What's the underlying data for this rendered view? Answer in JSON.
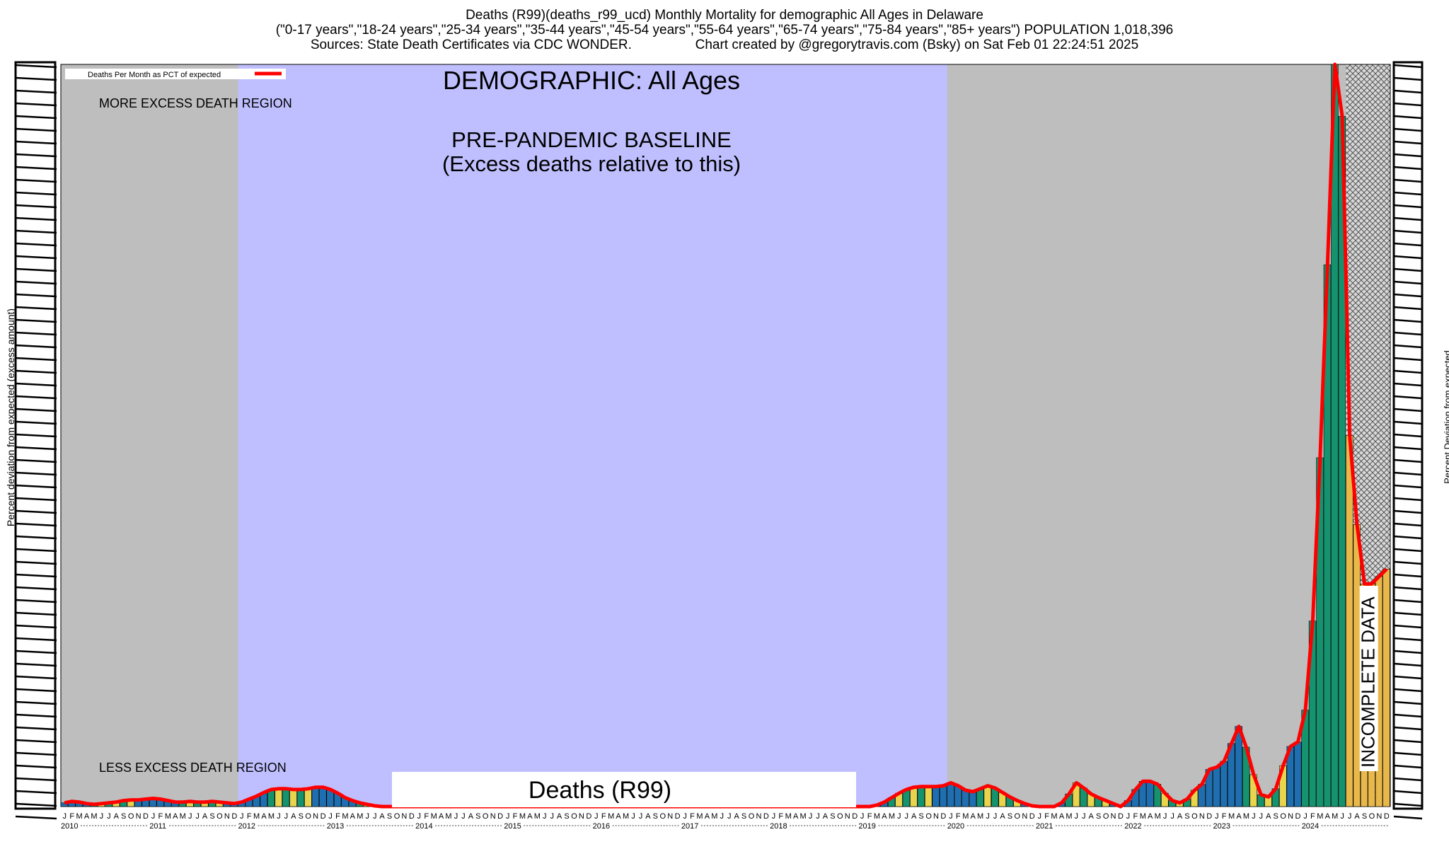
{
  "header": {
    "line1": "Deaths (R99)(deaths_r99_ucd) Monthly Mortality for demographic All Ages in Delaware",
    "line2": "(\"0-17 years\",\"18-24 years\",\"25-34 years\",\"35-44 years\",\"45-54 years\",\"55-64 years\",\"65-74 years\",\"75-84 years\",\"85+ years\") POPULATION 1,018,396",
    "line3": "Sources: State Death Certificates via CDC WONDER.                 Chart created by @gregorytravis.com (Bsky) on Sat Feb 01 22:24:51 2025"
  },
  "chart_data": {
    "type": "bar",
    "title": "DEMOGRAPHIC: All Ages",
    "subtitle": "Deaths (R99)",
    "legend": {
      "label": "Deaths Per Month as PCT of expected",
      "placement": "top-left"
    },
    "ylabel_left": "Percent deviation from expected (excess amount)",
    "ylabel_right": "Percent Deviation from expected",
    "regions": {
      "more_excess": "MORE EXCESS DEATH REGION",
      "less_excess": "LESS EXCESS DEATH REGION",
      "baseline_line1": "PRE-PANDEMIC BASELINE",
      "baseline_line2": "(Excess deaths relative to this)",
      "baseline_years": [
        "2012",
        "2019"
      ],
      "incomplete": "INCOMPLETE DATA",
      "incomplete_from": "2024-07"
    },
    "years": [
      "2010",
      "2011",
      "2012",
      "2013",
      "2014",
      "2015",
      "2016",
      "2017",
      "2018",
      "2019",
      "2020",
      "2021",
      "2022",
      "2023",
      "2024"
    ],
    "month_ticks": [
      "J",
      "F",
      "M",
      "A",
      "M",
      "J",
      "J",
      "A",
      "S",
      "O",
      "N",
      "D"
    ],
    "series": [
      {
        "values": [
          0.5,
          0.7,
          0.6,
          0.4,
          0.3,
          0.4,
          0.5,
          0.6,
          0.8,
          0.9,
          0.9,
          1.0,
          1.1,
          1.0,
          0.8,
          0.6,
          0.6,
          0.7,
          0.6,
          0.6,
          0.7,
          0.6,
          0.5,
          0.4,
          0.6,
          1.0,
          1.4,
          1.9,
          2.3,
          2.4,
          2.4,
          2.3,
          2.3,
          2.4,
          2.6,
          2.6,
          2.3,
          1.8,
          1.2,
          0.8,
          0.5,
          0.3,
          0.1,
          0.0,
          0.0,
          0.0,
          0.0,
          0.0,
          0.0,
          0.0,
          0.0,
          0.0,
          0.0,
          0.0,
          0.0,
          0.0,
          0.0,
          0.0,
          0.0,
          0.0,
          0.0,
          0.0,
          0.0,
          0.0,
          0.0,
          0.0,
          0.0,
          0.0,
          0.0,
          0.0,
          0.0,
          0.0,
          0.0,
          0.0,
          0.0,
          0.0,
          0.0,
          0.0,
          0.0,
          0.0,
          0.0,
          0.0,
          0.0,
          0.0,
          0.0,
          0.0,
          0.0,
          0.0,
          0.0,
          0.0,
          0.0,
          0.0,
          0.0,
          0.0,
          0.0,
          0.0,
          0.0,
          0.0,
          0.0,
          0.0,
          0.0,
          0.0,
          0.0,
          0.0,
          0.0,
          0.0,
          0.0,
          0.0,
          0.0,
          0.0,
          0.2,
          0.6,
          1.2,
          1.8,
          2.3,
          2.6,
          2.7,
          2.7,
          2.7,
          2.8,
          3.2,
          2.8,
          2.2,
          2.0,
          2.4,
          2.8,
          2.5,
          1.9,
          1.3,
          0.8,
          0.4,
          0.1,
          0.0,
          0.0,
          0.0,
          0.5,
          1.7,
          3.2,
          2.5,
          1.7,
          1.2,
          0.8,
          0.4,
          0.0,
          0.8,
          2.3,
          3.4,
          3.4,
          3.0,
          1.8,
          0.8,
          0.5,
          1.0,
          2.2,
          3.0,
          5.0,
          5.3,
          6.1,
          8.5,
          10.8,
          8.0,
          4.3,
          1.6,
          1.3,
          2.4,
          5.5,
          8.1,
          8.7,
          13.0,
          25.0,
          47.0,
          73.0,
          100.0,
          93.0,
          50.0,
          38.0,
          30.0,
          30.0,
          31.0,
          32.0
        ]
      }
    ],
    "ylim": [
      0,
      100
    ],
    "grid": false
  }
}
